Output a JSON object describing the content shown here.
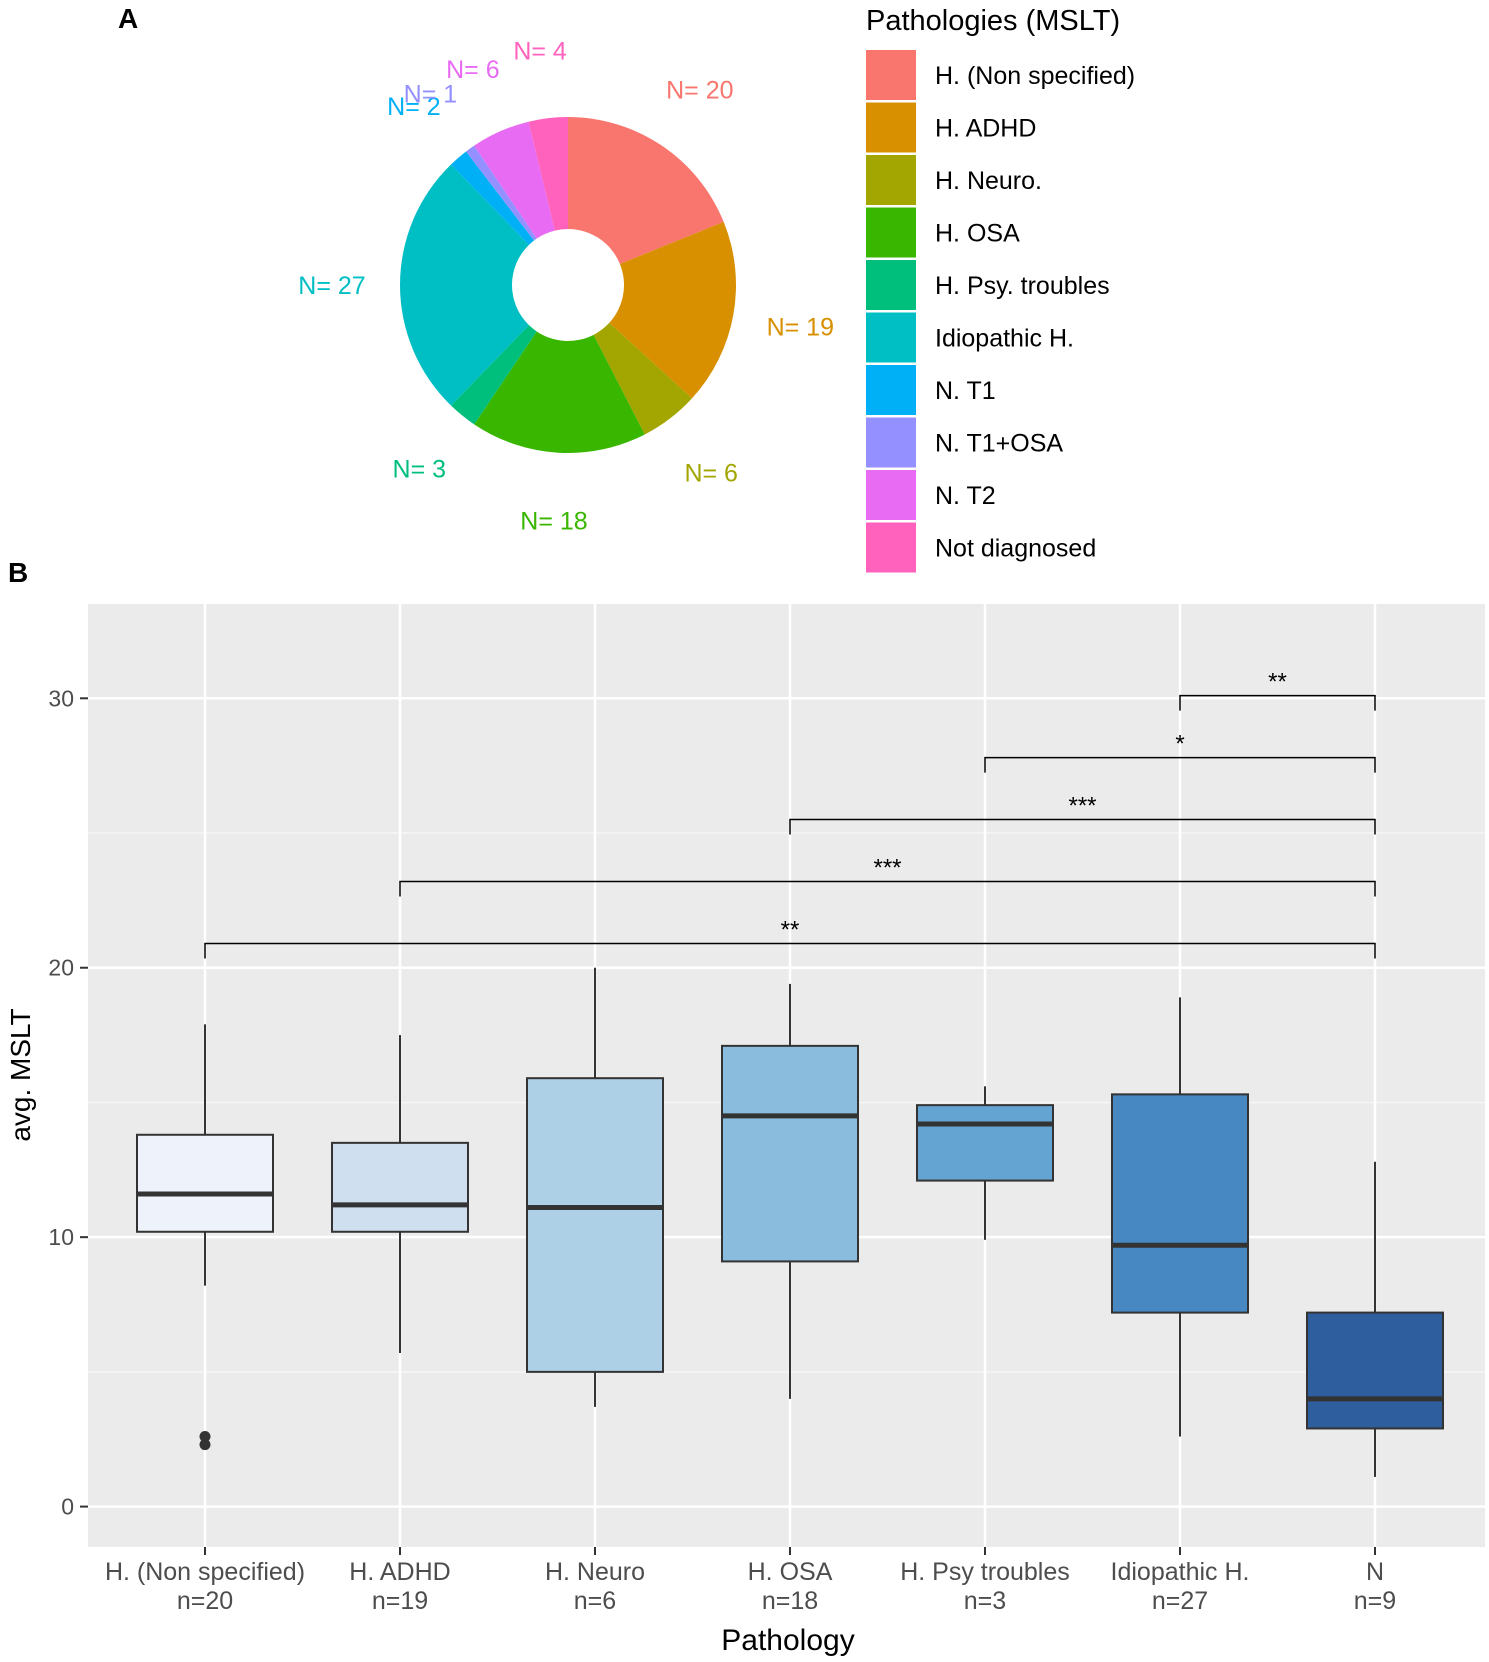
{
  "panel_a_label": "A",
  "panel_b_label": "B",
  "chart_data": [
    {
      "type": "pie",
      "title": "",
      "legend_title": "Pathologies (MSLT)",
      "legend_position": "right",
      "donut": true,
      "slices": [
        {
          "label": "H. (Non specified)",
          "value": 20,
          "text": "N= 20",
          "color": "#F8766D"
        },
        {
          "label": "H. ADHD",
          "value": 19,
          "text": "N= 19",
          "color": "#D89000"
        },
        {
          "label": "H. Neuro.",
          "value": 6,
          "text": "N= 6",
          "color": "#A3A500"
        },
        {
          "label": "H. OSA",
          "value": 18,
          "text": "N= 18",
          "color": "#39B600"
        },
        {
          "label": "H. Psy. troubles",
          "value": 3,
          "text": "N= 3",
          "color": "#00BF7D"
        },
        {
          "label": "Idiopathic H.",
          "value": 27,
          "text": "N= 27",
          "color": "#00BFC4"
        },
        {
          "label": "N. T1",
          "value": 2,
          "text": "N= 2",
          "color": "#00B0F6"
        },
        {
          "label": "N. T1+OSA",
          "value": 1,
          "text": "N= 1",
          "color": "#9590FF"
        },
        {
          "label": "N. T2",
          "value": 6,
          "text": "N= 6",
          "color": "#E76BF3"
        },
        {
          "label": "Not diagnosed",
          "value": 4,
          "text": "N= 4",
          "color": "#FF62BC"
        }
      ]
    },
    {
      "type": "box",
      "title": "",
      "xlabel": "Pathology",
      "ylabel": "avg. MSLT",
      "ylim": [
        -1.5,
        33.5
      ],
      "yticks": [
        0,
        10,
        20,
        30
      ],
      "grid": true,
      "boxes": [
        {
          "name": "H. (Non specified)",
          "n": "n=20",
          "min": 8.2,
          "q1": 10.2,
          "median": 11.6,
          "q3": 13.8,
          "max": 17.9,
          "outliers": [
            2.3,
            2.6
          ],
          "color": "#EEF3FB"
        },
        {
          "name": "H. ADHD",
          "n": "n=19",
          "min": 5.7,
          "q1": 10.2,
          "median": 11.2,
          "q3": 13.5,
          "max": 17.5,
          "outliers": [],
          "color": "#CFDFF0"
        },
        {
          "name": "H. Neuro",
          "n": "n=6",
          "min": 3.7,
          "q1": 5.0,
          "median": 11.1,
          "q3": 15.9,
          "max": 20.0,
          "outliers": [],
          "color": "#AED0E6"
        },
        {
          "name": "H. OSA",
          "n": "n=18",
          "min": 4.0,
          "q1": 9.1,
          "median": 14.5,
          "q3": 17.1,
          "max": 19.4,
          "outliers": [],
          "color": "#89BCDD"
        },
        {
          "name": "H. Psy troubles",
          "n": "n=3",
          "min": 9.9,
          "q1": 12.1,
          "median": 14.2,
          "q3": 14.9,
          "max": 15.6,
          "outliers": [],
          "color": "#63A4D3"
        },
        {
          "name": "Idiopathic H.",
          "n": "n=27",
          "min": 2.6,
          "q1": 7.2,
          "median": 9.7,
          "q3": 15.3,
          "max": 18.9,
          "outliers": [],
          "color": "#4787C2"
        },
        {
          "name": "N",
          "n": "n=9",
          "min": 1.1,
          "q1": 2.9,
          "median": 4.0,
          "q3": 7.2,
          "max": 12.8,
          "outliers": [],
          "color": "#2E5E9E"
        }
      ],
      "significance": [
        {
          "from": "H. (Non specified)",
          "to": "N",
          "y": 20.9,
          "label": "**"
        },
        {
          "from": "H. ADHD",
          "to": "N",
          "y": 23.2,
          "label": "***"
        },
        {
          "from": "H. OSA",
          "to": "N",
          "y": 25.5,
          "label": "***"
        },
        {
          "from": "H. Psy troubles",
          "to": "N",
          "y": 27.8,
          "label": "*"
        },
        {
          "from": "Idiopathic H.",
          "to": "N",
          "y": 30.1,
          "label": "**"
        }
      ]
    }
  ]
}
